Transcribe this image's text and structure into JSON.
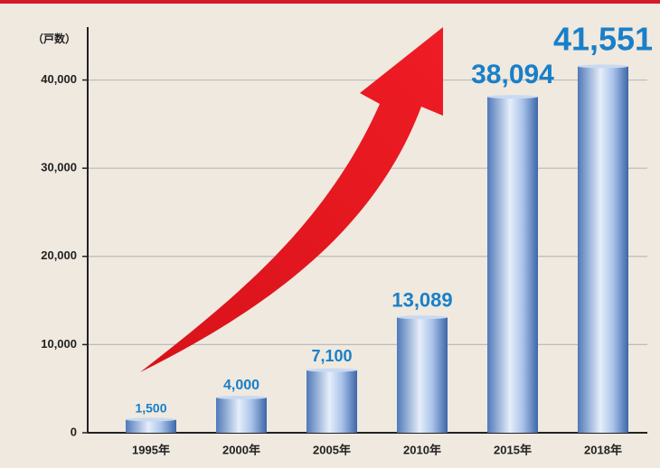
{
  "chart_data": {
    "type": "bar",
    "y_axis_label": "（戸数）",
    "categories": [
      "1995年",
      "2000年",
      "2005年",
      "2010年",
      "2015年",
      "2018年"
    ],
    "values": [
      1500,
      4000,
      7100,
      13089,
      38094,
      41551
    ],
    "value_labels": [
      "1,500",
      "4,000",
      "7,100",
      "13,089",
      "38,094",
      "41,551"
    ],
    "color": "#7fa6dc",
    "label_color": "#1a7fc8",
    "ylim": [
      0,
      46000
    ],
    "yticks": [
      0,
      {
        "value": 10000,
        "label": "10,000"
      },
      {
        "value": 20000,
        "label": "20,000"
      },
      {
        "value": 30000,
        "label": "30,000"
      },
      {
        "value": 40000,
        "label": "40,000"
      }
    ],
    "grid": true
  }
}
